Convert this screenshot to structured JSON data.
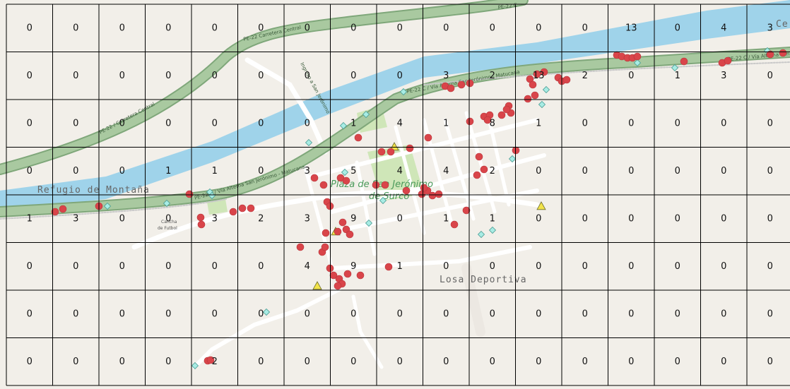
{
  "map": {
    "place_labels": {
      "refugio": "Refugio de Montaña",
      "plaza_line1": "Plaza de San Jerónimo",
      "plaza_line2": "de Surco",
      "losa": "Losa Deportiva",
      "cancha_line1": "Cancha",
      "cancha_line2": "de Futbol",
      "ce": "Ce"
    },
    "road_labels": {
      "carretera_central_top": "PE-22 Carretera Central",
      "carretera_central_left": "PE-22 / Carretera Central",
      "via_alterna_mid": "PE-22 C / Vía Alterna San Jerónimo - Matucana",
      "via_alterna_left": "PE-22 C / Vía Alterna San Jerónimo - Matucana",
      "via_alterna_right": "PE-22 C / Vía Alterna San",
      "ingreso": "Ingreso a San Jerónimo",
      "pe22_top": "PE-22 C"
    },
    "colors": {
      "background": "#f2efe9",
      "river": "#9fd3ea",
      "highway_fill": "#a9c9a0",
      "highway_border": "#7fa77a",
      "street": "#ffffff",
      "park": "#cfe6b8",
      "grid_line": "#000000",
      "incident_dot": "#d9454a",
      "diamond": "#a8ece4",
      "triangle": "#f2e34a"
    },
    "icons": {
      "point": "red-circle",
      "diamond": "cyan-diamond",
      "triangle": "yellow-triangle"
    },
    "grid": {
      "columns": 17,
      "rows": 8,
      "counts": [
        [
          0,
          0,
          0,
          0,
          0,
          0,
          0,
          0,
          0,
          0,
          0,
          0,
          0,
          13,
          0,
          4,
          3
        ],
        [
          0,
          0,
          0,
          0,
          0,
          0,
          0,
          0,
          0,
          3,
          2,
          13,
          2,
          0,
          1,
          3,
          0
        ],
        [
          0,
          0,
          0,
          0,
          0,
          0,
          0,
          1,
          4,
          1,
          8,
          1,
          0,
          0,
          0,
          0,
          0
        ],
        [
          0,
          0,
          0,
          1,
          1,
          0,
          3,
          5,
          4,
          4,
          2,
          0,
          0,
          0,
          0,
          0,
          0
        ],
        [
          1,
          3,
          0,
          0,
          3,
          2,
          3,
          9,
          0,
          1,
          1,
          0,
          0,
          0,
          0,
          0,
          0
        ],
        [
          0,
          0,
          0,
          0,
          0,
          0,
          4,
          9,
          1,
          0,
          0,
          0,
          0,
          0,
          0,
          0,
          0
        ],
        [
          0,
          0,
          0,
          0,
          0,
          0,
          0,
          0,
          0,
          0,
          0,
          0,
          0,
          0,
          0,
          0,
          0
        ],
        [
          0,
          0,
          0,
          0,
          2,
          0,
          0,
          0,
          0,
          0,
          0,
          0,
          0,
          0,
          0,
          0,
          0
        ]
      ]
    }
  }
}
